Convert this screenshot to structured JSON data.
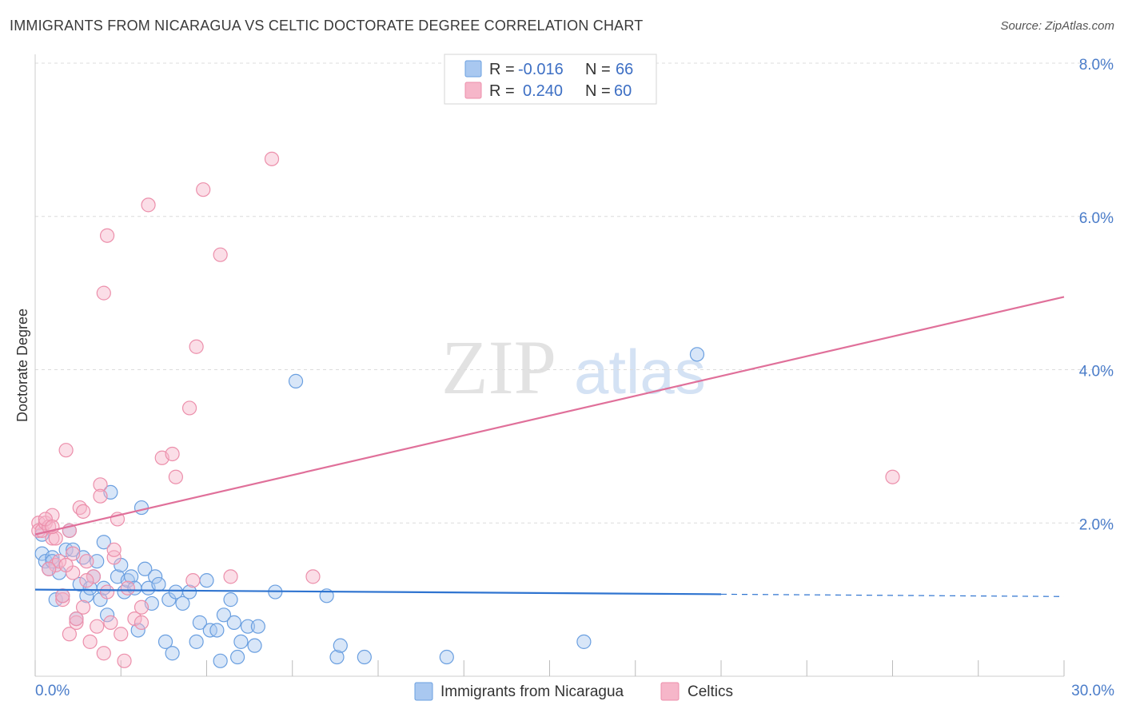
{
  "header": {
    "title": "IMMIGRANTS FROM NICARAGUA VS CELTIC DOCTORATE DEGREE CORRELATION CHART",
    "source": "Source: ZipAtlas.com"
  },
  "watermark": {
    "zip": "ZIP",
    "atlas": "atlas"
  },
  "colors": {
    "blue_fill": "#a9c8f0",
    "blue_stroke": "#6a9fe0",
    "blue_line": "#2f74d0",
    "pink_fill": "#f6b6c9",
    "pink_stroke": "#ec8fab",
    "pink_line": "#e0709a",
    "tick_color": "#4a7cc9"
  },
  "legend": {
    "rows": [
      {
        "r_label": "R =",
        "r_value": "-0.016",
        "n_label": "N =",
        "n_value": "66"
      },
      {
        "r_label": "R =",
        "r_value": "0.240",
        "n_label": "N =",
        "n_value": "60"
      }
    ]
  },
  "chart_data": {
    "type": "scatter",
    "title": "IMMIGRANTS FROM NICARAGUA VS CELTIC DOCTORATE DEGREE CORRELATION CHART",
    "xlabel": "",
    "ylabel": "Doctorate Degree",
    "xlim": [
      0,
      30
    ],
    "ylim": [
      0,
      8
    ],
    "x_tick_labels": [
      "0.0%",
      "30.0%"
    ],
    "y_ticks": [
      2,
      4,
      6,
      8
    ],
    "y_tick_labels": [
      "2.0%",
      "4.0%",
      "6.0%",
      "8.0%"
    ],
    "series": [
      {
        "name": "Immigrants from Nicaragua",
        "color": "blue",
        "trend": {
          "x0": 0,
          "y0": 1.13,
          "x1": 20,
          "y1": 1.07,
          "dash_to_x": 30,
          "dash_y": 1.04
        },
        "points": [
          [
            0.2,
            1.85
          ],
          [
            0.2,
            1.6
          ],
          [
            0.3,
            1.5
          ],
          [
            0.4,
            1.4
          ],
          [
            0.5,
            1.55
          ],
          [
            0.5,
            1.5
          ],
          [
            0.6,
            1.0
          ],
          [
            0.7,
            1.35
          ],
          [
            0.8,
            1.05
          ],
          [
            0.9,
            1.65
          ],
          [
            1.0,
            1.9
          ],
          [
            1.1,
            1.65
          ],
          [
            1.2,
            0.75
          ],
          [
            1.3,
            1.2
          ],
          [
            1.4,
            1.55
          ],
          [
            1.5,
            1.05
          ],
          [
            1.6,
            1.15
          ],
          [
            1.7,
            1.3
          ],
          [
            1.8,
            1.5
          ],
          [
            1.9,
            1.0
          ],
          [
            2.0,
            1.15
          ],
          [
            2.0,
            1.75
          ],
          [
            2.1,
            0.8
          ],
          [
            2.2,
            2.4
          ],
          [
            2.4,
            1.3
          ],
          [
            2.5,
            1.45
          ],
          [
            2.6,
            1.1
          ],
          [
            2.7,
            1.25
          ],
          [
            2.8,
            1.3
          ],
          [
            2.9,
            1.15
          ],
          [
            3.0,
            0.6
          ],
          [
            3.1,
            2.2
          ],
          [
            3.2,
            1.4
          ],
          [
            3.3,
            1.15
          ],
          [
            3.4,
            0.95
          ],
          [
            3.5,
            1.3
          ],
          [
            3.6,
            1.2
          ],
          [
            3.8,
            0.45
          ],
          [
            3.9,
            1.0
          ],
          [
            4.0,
            0.3
          ],
          [
            4.1,
            1.1
          ],
          [
            4.3,
            0.95
          ],
          [
            4.5,
            1.1
          ],
          [
            4.7,
            0.45
          ],
          [
            4.8,
            0.7
          ],
          [
            5.0,
            1.25
          ],
          [
            5.1,
            0.6
          ],
          [
            5.3,
            0.6
          ],
          [
            5.4,
            0.2
          ],
          [
            5.5,
            0.8
          ],
          [
            5.7,
            1.0
          ],
          [
            5.8,
            0.7
          ],
          [
            5.9,
            0.25
          ],
          [
            6.0,
            0.45
          ],
          [
            6.2,
            0.65
          ],
          [
            6.4,
            0.4
          ],
          [
            6.5,
            0.65
          ],
          [
            7.0,
            1.1
          ],
          [
            7.6,
            3.85
          ],
          [
            8.5,
            1.05
          ],
          [
            8.8,
            0.25
          ],
          [
            8.9,
            0.4
          ],
          [
            9.6,
            0.25
          ],
          [
            12.0,
            0.25
          ],
          [
            16.0,
            0.45
          ],
          [
            19.3,
            4.2
          ]
        ]
      },
      {
        "name": "Celtics",
        "color": "pink",
        "trend": {
          "x0": 0,
          "y0": 1.85,
          "x1": 30,
          "y1": 4.95
        },
        "points": [
          [
            0.1,
            2.0
          ],
          [
            0.1,
            1.9
          ],
          [
            0.2,
            1.9
          ],
          [
            0.3,
            2.0
          ],
          [
            0.4,
            1.95
          ],
          [
            0.5,
            2.1
          ],
          [
            0.5,
            1.8
          ],
          [
            0.6,
            1.45
          ],
          [
            0.7,
            1.5
          ],
          [
            0.8,
            1.0
          ],
          [
            0.9,
            2.95
          ],
          [
            1.0,
            1.9
          ],
          [
            1.1,
            1.35
          ],
          [
            1.2,
            0.7
          ],
          [
            1.3,
            2.2
          ],
          [
            1.4,
            2.15
          ],
          [
            1.5,
            1.5
          ],
          [
            1.6,
            0.45
          ],
          [
            1.7,
            1.3
          ],
          [
            1.8,
            0.65
          ],
          [
            1.9,
            2.5
          ],
          [
            1.9,
            2.35
          ],
          [
            2.0,
            5.0
          ],
          [
            2.0,
            0.3
          ],
          [
            2.1,
            5.75
          ],
          [
            2.2,
            0.7
          ],
          [
            2.3,
            1.55
          ],
          [
            2.4,
            2.05
          ],
          [
            2.5,
            0.55
          ],
          [
            2.6,
            0.2
          ],
          [
            2.7,
            1.15
          ],
          [
            2.9,
            0.75
          ],
          [
            3.1,
            0.9
          ],
          [
            3.1,
            0.7
          ],
          [
            3.3,
            6.15
          ],
          [
            3.7,
            2.85
          ],
          [
            4.0,
            2.9
          ],
          [
            4.1,
            2.6
          ],
          [
            4.5,
            3.5
          ],
          [
            4.6,
            1.25
          ],
          [
            4.7,
            4.3
          ],
          [
            4.9,
            6.35
          ],
          [
            5.4,
            5.5
          ],
          [
            5.7,
            1.3
          ],
          [
            6.9,
            6.75
          ],
          [
            8.1,
            1.3
          ],
          [
            1.0,
            0.55
          ],
          [
            1.1,
            1.6
          ],
          [
            0.6,
            1.8
          ],
          [
            0.4,
            1.4
          ],
          [
            1.4,
            0.9
          ],
          [
            0.8,
            1.05
          ],
          [
            2.3,
            1.65
          ],
          [
            1.2,
            0.75
          ],
          [
            0.3,
            2.05
          ],
          [
            0.5,
            1.95
          ],
          [
            0.9,
            1.45
          ],
          [
            1.5,
            1.25
          ],
          [
            2.1,
            1.1
          ],
          [
            25.0,
            2.6
          ]
        ]
      }
    ]
  },
  "bottom_legend": [
    {
      "label": "Immigrants from Nicaragua",
      "color": "blue"
    },
    {
      "label": "Celtics",
      "color": "pink"
    }
  ]
}
